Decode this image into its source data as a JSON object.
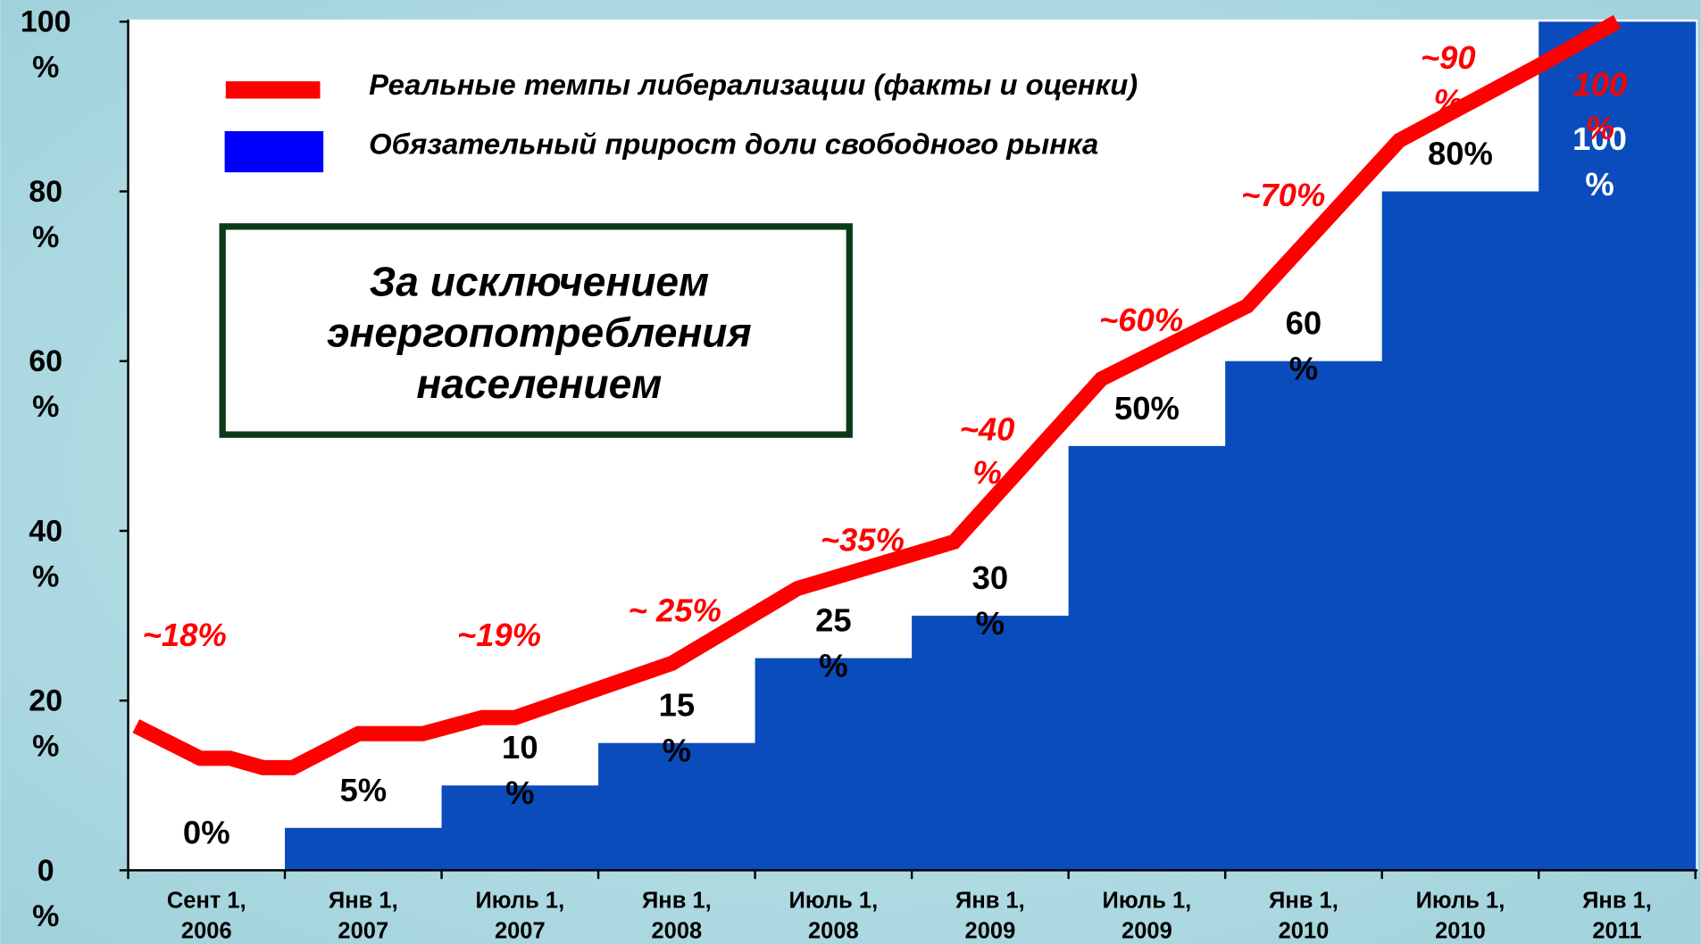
{
  "chart_data": {
    "type": "bar",
    "categories": [
      "Сент 1, 2006",
      "Янв 1, 2007",
      "Июль 1, 2007",
      "Янв 1, 2008",
      "Июль 1, 2008",
      "Янв 1, 2009",
      "Июль 1, 2009",
      "Янв 1, 2010",
      "Июль 1, 2010",
      "Янв 1, 2011"
    ],
    "series": [
      {
        "name": "Обязательный прирост доли свободного рынка",
        "color": "#0a4cbb",
        "values": [
          0,
          5,
          10,
          15,
          25,
          30,
          50,
          60,
          80,
          100
        ],
        "value_labels": [
          "0%",
          "5%",
          "10 %",
          "15 %",
          "25 %",
          "30 %",
          "50%",
          "60 %",
          "80%",
          "100 %"
        ]
      },
      {
        "name": "Реальные темпы либерализации (факты и оценки)",
        "color": "#ff0000",
        "type": "line",
        "x": [
          -0.45,
          -0.04,
          0.15,
          0.36,
          0.55,
          0.97,
          1.38,
          1.76,
          1.97,
          2.97,
          3.77,
          4.77,
          5.71,
          6.64,
          6.78,
          7.61,
          8.51,
          9.0
        ],
        "values": [
          17,
          13.2,
          13.2,
          12.1,
          12.1,
          16.1,
          16.1,
          18,
          18,
          24.4,
          33.2,
          38.7,
          57.9,
          66.5,
          69.3,
          86,
          94.9,
          100
        ]
      }
    ],
    "ylim": [
      0,
      100
    ],
    "yticks": [
      {
        "value": 0,
        "label": "0 %"
      },
      {
        "value": 20,
        "label": "20 %"
      },
      {
        "value": 40,
        "label": "40 %"
      },
      {
        "value": 60,
        "label": "60 %"
      },
      {
        "value": 80,
        "label": "80 %"
      },
      {
        "value": 100,
        "label": "100 %"
      }
    ],
    "annotations": [
      "~18%",
      "~19%",
      "~ 25%",
      "~35%",
      "~40 %",
      "~60%",
      "~70%",
      "~90 %",
      "100 %"
    ],
    "note": [
      "За исключением",
      "энергопотребления",
      "населением"
    ]
  }
}
